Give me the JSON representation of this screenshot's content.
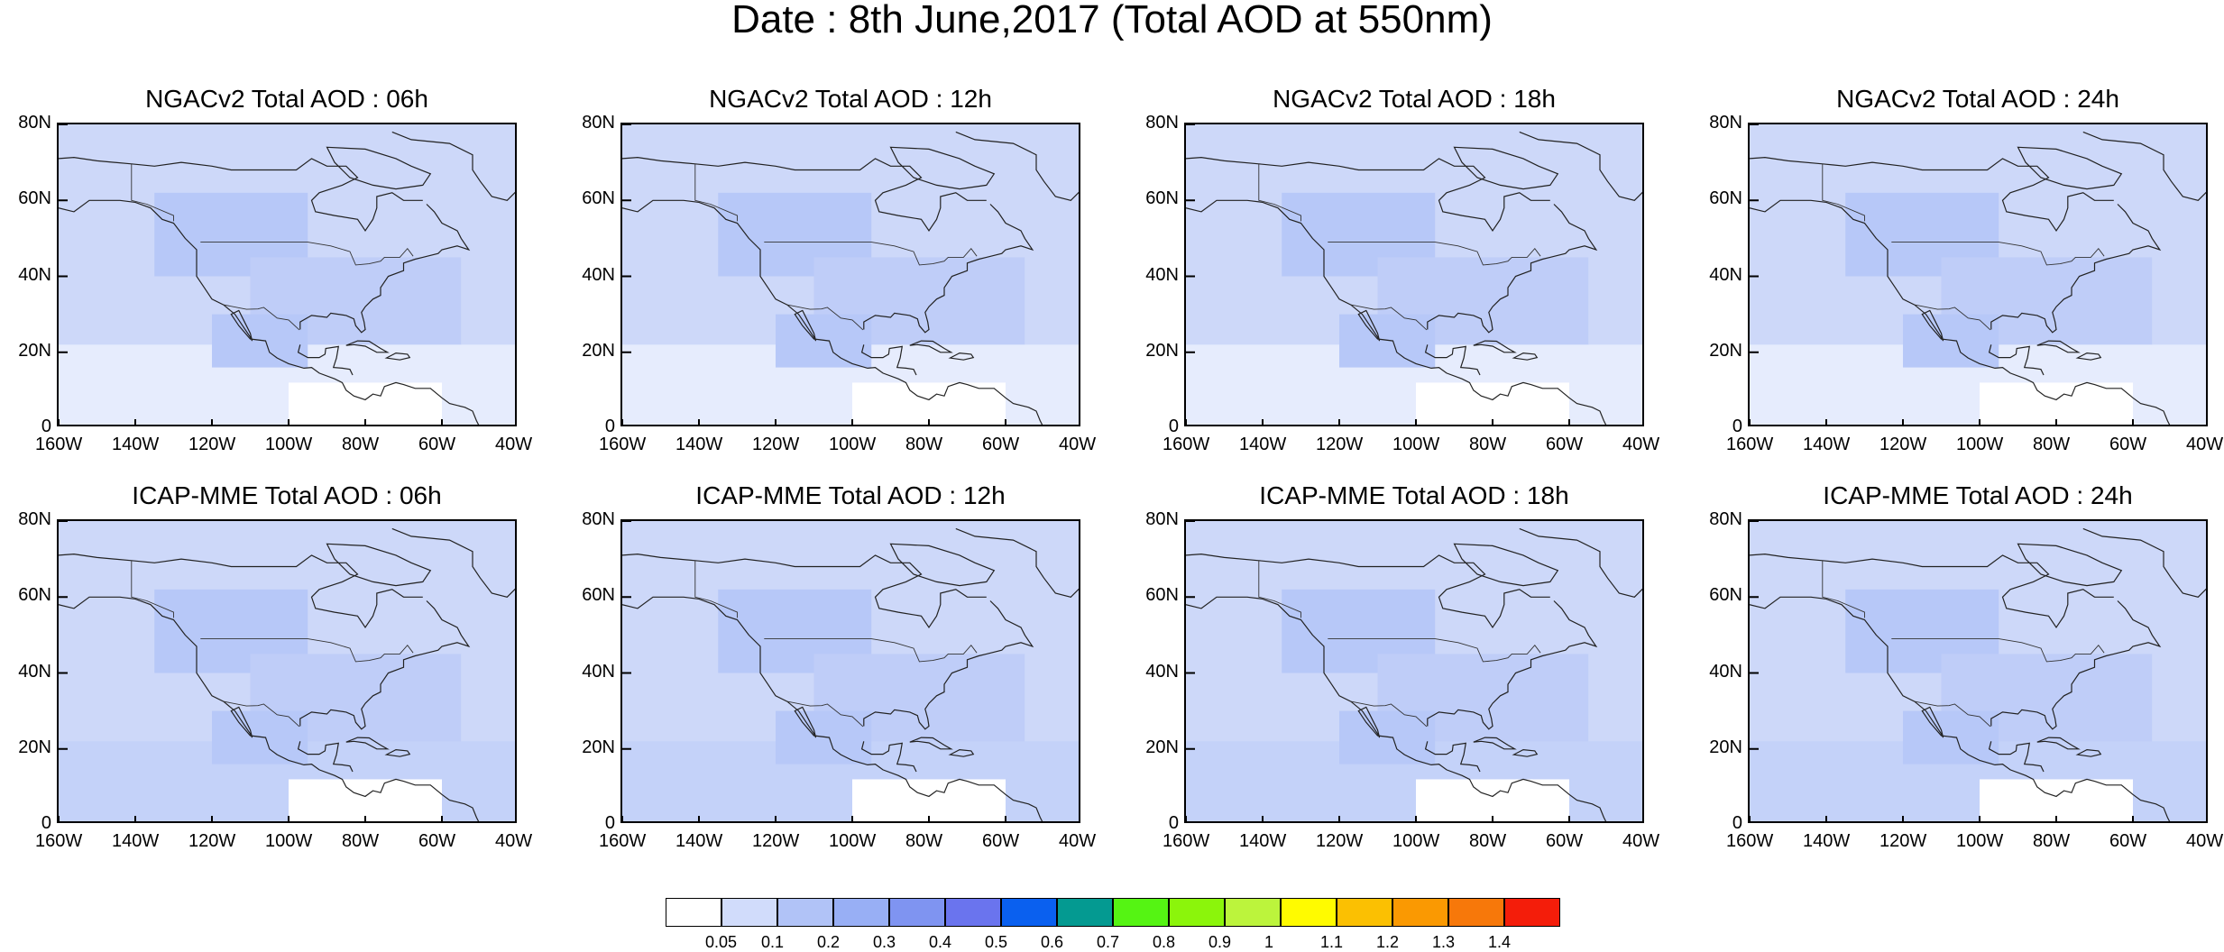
{
  "title": "Date : 8th June,2017 (Total AOD at 550nm)",
  "panels": [
    {
      "title": "NGACv2 Total AOD : 06h"
    },
    {
      "title": "NGACv2 Total AOD : 12h"
    },
    {
      "title": "NGACv2 Total AOD : 18h"
    },
    {
      "title": "NGACv2 Total AOD : 24h"
    },
    {
      "title": "ICAP-MME Total AOD : 06h"
    },
    {
      "title": "ICAP-MME Total AOD : 12h"
    },
    {
      "title": "ICAP-MME Total AOD : 18h"
    },
    {
      "title": "ICAP-MME Total AOD : 24h"
    }
  ],
  "axes": {
    "lat_ticks": [
      "80N",
      "60N",
      "40N",
      "20N",
      "0"
    ],
    "lon_ticks": [
      "160W",
      "140W",
      "120W",
      "100W",
      "80W",
      "60W",
      "40W"
    ],
    "lat_range": [
      0,
      80
    ],
    "lon_range": [
      -160,
      -40
    ]
  },
  "colorbar": {
    "levels": [
      "0.05",
      "0.1",
      "0.2",
      "0.3",
      "0.4",
      "0.5",
      "0.6",
      "0.7",
      "0.8",
      "0.9",
      "1",
      "1.1",
      "1.2",
      "1.3",
      "1.4"
    ],
    "colors": [
      "#ffffff",
      "#d1dcfb",
      "#b1c3f7",
      "#98aff5",
      "#7f94f1",
      "#6a74ee",
      "#0a60ef",
      "#049a91",
      "#55f413",
      "#8bf50b",
      "#bcf43c",
      "#fffb00",
      "#fbc002",
      "#fa9902",
      "#f7780a",
      "#f41d0a"
    ]
  }
}
